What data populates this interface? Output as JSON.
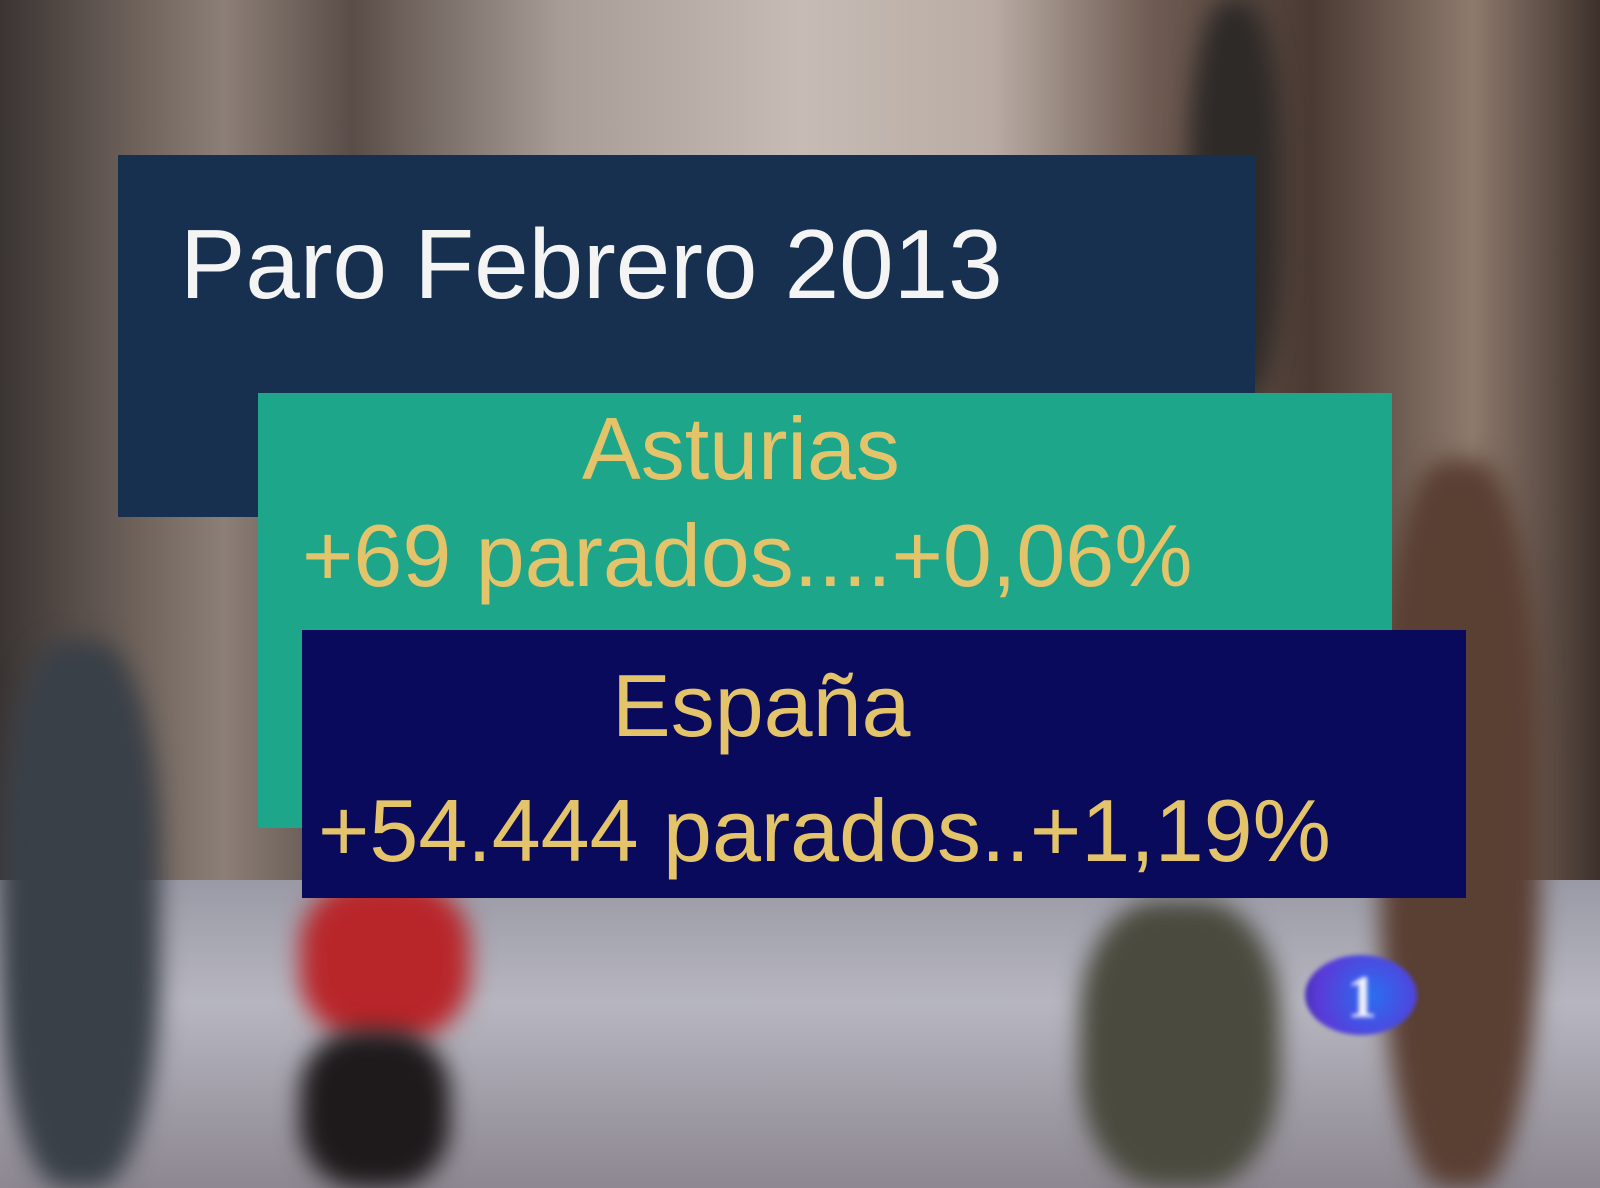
{
  "overlay": {
    "title": "Paro Febrero 2013",
    "asturias": {
      "region": "Asturias",
      "stat": "+69 parados....+0,06%"
    },
    "espana": {
      "region": "España",
      "stat": "+54.444 parados..+1,19%"
    }
  },
  "channel_logo": {
    "text": "1",
    "icon": "tve-la1-logo"
  },
  "colors": {
    "title_box": "#17304f",
    "asturias_box": "#1ea68a",
    "espana_box": "#0a0a5c",
    "text_gold": "#e4c46a",
    "title_text": "#f4f4f4"
  }
}
